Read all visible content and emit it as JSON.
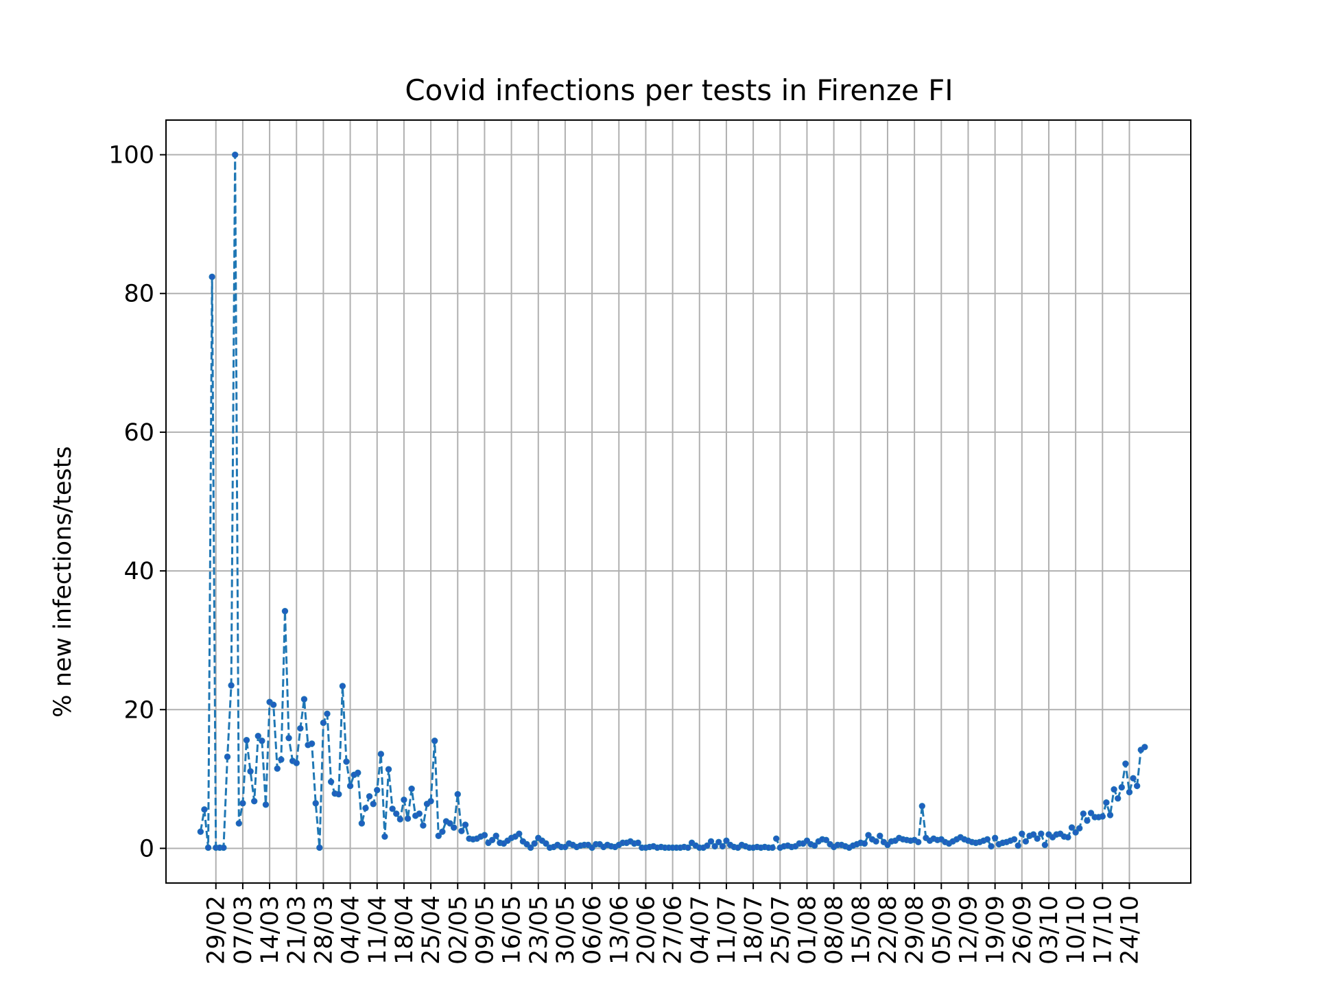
{
  "chart_data": {
    "type": "line",
    "title": "Covid infections per tests in Firenze FI",
    "xlabel": "",
    "ylabel": "% new infections/tests",
    "x_start": "2020-02-25",
    "x_range": [
      "2020-02-16",
      "2020-11-09"
    ],
    "ylim": [
      -5,
      105
    ],
    "yticks": [
      0,
      20,
      40,
      60,
      80,
      100
    ],
    "xticks": [
      "29/02",
      "07/03",
      "14/03",
      "21/03",
      "28/03",
      "04/04",
      "11/04",
      "18/04",
      "25/04",
      "02/05",
      "09/05",
      "16/05",
      "23/05",
      "30/05",
      "06/06",
      "13/06",
      "20/06",
      "27/06",
      "04/07",
      "11/07",
      "18/07",
      "25/07",
      "01/08",
      "08/08",
      "15/08",
      "22/08",
      "29/08",
      "05/09",
      "12/09",
      "19/09",
      "26/09",
      "03/10",
      "10/10",
      "17/10",
      "24/10"
    ],
    "grid": true,
    "line_color": "#1f77b4",
    "marker_color": "#1f5fbf",
    "line_style": "dashed",
    "series": [
      {
        "name": "",
        "values": [
          2.4,
          5.6,
          0.1,
          82.4,
          0.1,
          0.1,
          0.1,
          13.2,
          23.5,
          100,
          3.6,
          6.5,
          15.6,
          11.1,
          6.8,
          16.2,
          15.5,
          6.3,
          21.1,
          20.7,
          11.5,
          12.8,
          34.2,
          15.9,
          12.6,
          12.3,
          17.3,
          21.5,
          14.9,
          15.1,
          6.5,
          0.1,
          18.1,
          19.4,
          9.6,
          7.9,
          7.8,
          23.4,
          12.5,
          9.0,
          10.6,
          10.9,
          3.6,
          5.8,
          7.5,
          6.4,
          8.4,
          13.6,
          1.7,
          11.4,
          5.7,
          5.0,
          4.2,
          7.0,
          4.3,
          8.6,
          4.7,
          5.0,
          3.3,
          6.4,
          6.8,
          15.5,
          1.8,
          2.4,
          3.9,
          3.6,
          3.0,
          7.8,
          2.5,
          3.4,
          1.4,
          1.3,
          1.4,
          1.7,
          1.9,
          0.8,
          1.2,
          1.8,
          0.8,
          0.7,
          1.1,
          1.5,
          1.7,
          2.1,
          1.0,
          0.6,
          0.1,
          0.7,
          1.5,
          1.1,
          0.7,
          0.1,
          0.2,
          0.5,
          0.2,
          0.2,
          0.7,
          0.5,
          0.2,
          0.4,
          0.5,
          0.5,
          0.1,
          0.6,
          0.6,
          0.2,
          0.5,
          0.3,
          0.2,
          0.5,
          0.8,
          0.8,
          1.0,
          0.7,
          0.8,
          0.1,
          0.1,
          0.2,
          0.3,
          0.1,
          0.2,
          0.1,
          0.1,
          0.1,
          0.1,
          0.1,
          0.2,
          0.1,
          0.8,
          0.4,
          0.1,
          0.1,
          0.4,
          1.0,
          0.3,
          0.9,
          0.3,
          1.1,
          0.5,
          0.2,
          0.1,
          0.5,
          0.3,
          0.1,
          0.1,
          0.2,
          0.1,
          0.2,
          0.1,
          0.1,
          1.4,
          0.1,
          0.3,
          0.4,
          0.2,
          0.3,
          0.7,
          0.7,
          1.1,
          0.6,
          0.4,
          1.0,
          1.3,
          1.2,
          0.6,
          0.2,
          0.5,
          0.5,
          0.3,
          0.1,
          0.4,
          0.6,
          0.8,
          0.7,
          1.9,
          1.3,
          1.0,
          1.8,
          0.9,
          0.5,
          1.0,
          1.1,
          1.5,
          1.3,
          1.2,
          1.1,
          1.2,
          0.9,
          6.1,
          1.5,
          1.1,
          1.4,
          1.2,
          1.3,
          0.9,
          0.7,
          1.0,
          1.3,
          1.6,
          1.3,
          1.1,
          0.9,
          0.8,
          0.9,
          1.1,
          1.3,
          0.3,
          1.5,
          0.6,
          0.8,
          0.9,
          1.1,
          1.3,
          0.4,
          2.1,
          1.0,
          1.8,
          2.0,
          1.4,
          2.1,
          0.5,
          2.0,
          1.6,
          2.0,
          2.1,
          1.7,
          1.6,
          3.0,
          2.3,
          2.9,
          5.0,
          4.0,
          5.1,
          4.5,
          4.5,
          4.6,
          6.6,
          4.8,
          8.5,
          7.2,
          8.8,
          12.2,
          8.1,
          10.1,
          9.0,
          14.2,
          14.6
        ]
      }
    ]
  }
}
